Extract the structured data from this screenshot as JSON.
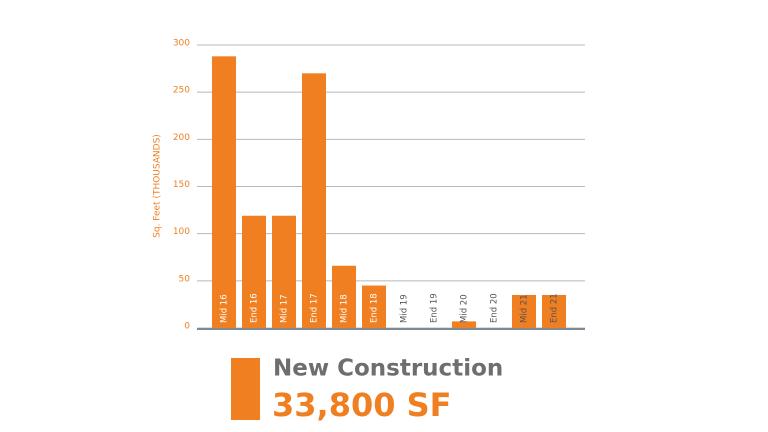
{
  "chart_data": {
    "type": "bar",
    "y_label": "Sq. Feet (THOUSANDS)",
    "categories": [
      "Mid 16",
      "End 16",
      "Mid 17",
      "End 17",
      "Mid 18",
      "End 18",
      "Mid 19",
      "End 19",
      "Mid 20",
      "End 20",
      "Mid 21",
      "End 21"
    ],
    "series": [
      {
        "name": "New Construction",
        "color": "#f07f22",
        "values": [
          288,
          119,
          119,
          270,
          66,
          45,
          0,
          0,
          7,
          0,
          35,
          35
        ]
      }
    ],
    "annotation": "33,800 SF",
    "ylim": [
      0,
      300
    ],
    "yticks": [
      0,
      50,
      100,
      150,
      200,
      250,
      300
    ],
    "grid": true
  }
}
